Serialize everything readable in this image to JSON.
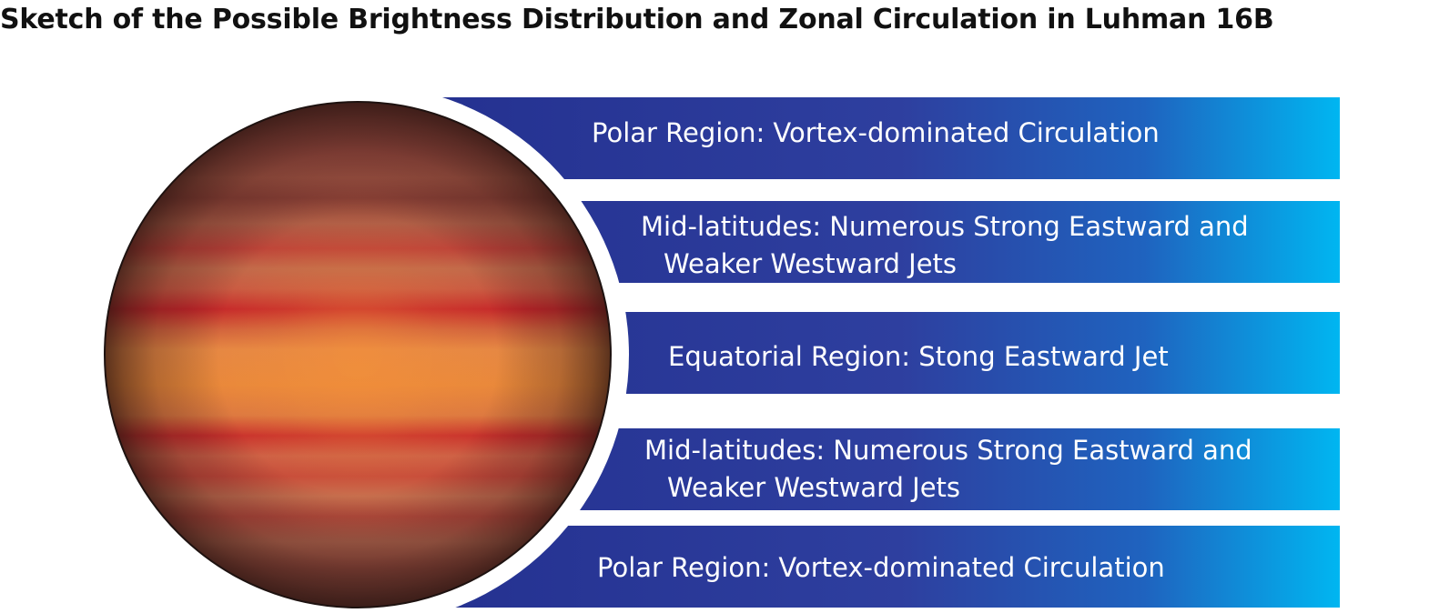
{
  "title": "Sketch of the Possible Brightness Distribution and Zonal Circulation in Luhman 16B",
  "colors": {
    "band_left": "#232f8e",
    "band_mid": "#2e3f9f",
    "band_right": "#00b6f1",
    "planet_edge": "#3a2220",
    "planet_core": "#f08a36",
    "stripe_red": "#c8262b"
  },
  "bands": [
    {
      "lines": [
        "Polar Region: Vortex-dominated Circulation"
      ]
    },
    {
      "lines": [
        "Mid-latitudes: Numerous Strong Eastward and",
        "Weaker Westward Jets"
      ]
    },
    {
      "lines": [
        "Equatorial Region: Stong Eastward Jet"
      ]
    },
    {
      "lines": [
        "Mid-latitudes: Numerous Strong Eastward and",
        "Weaker Westward Jets"
      ]
    },
    {
      "lines": [
        "Polar Region:  Vortex-dominated Circulation"
      ]
    }
  ]
}
